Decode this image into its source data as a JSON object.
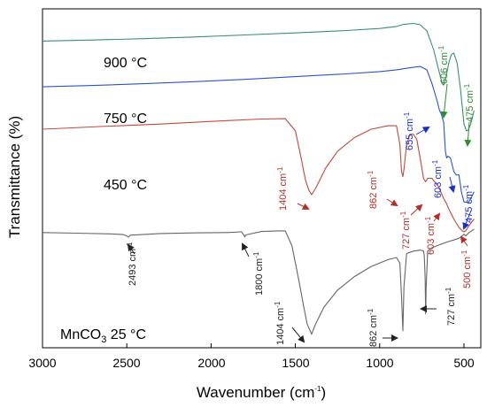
{
  "chart_data": {
    "type": "line",
    "xlabel": "Wavenumber (cm",
    "xlabel_sup": "-1",
    "xlabel_end": ")",
    "ylabel": "Transmittance (%)",
    "xlim": [
      3000,
      400
    ],
    "x_reversed": true,
    "x_ticks": [
      "3000",
      "2500",
      "2000",
      "1500",
      "1000",
      "500"
    ],
    "y_ticks_labeled": false,
    "grid": false,
    "series": [
      {
        "name": "900 °C",
        "color": "#3a8f6e",
        "label_text": "900 °C",
        "points": [
          [
            3000,
            0.905
          ],
          [
            2700,
            0.908
          ],
          [
            2400,
            0.912
          ],
          [
            2100,
            0.917
          ],
          [
            1800,
            0.923
          ],
          [
            1500,
            0.929
          ],
          [
            1200,
            0.936
          ],
          [
            1000,
            0.942
          ],
          [
            900,
            0.948
          ],
          [
            860,
            0.954
          ],
          [
            800,
            0.957
          ],
          [
            760,
            0.953
          ],
          [
            720,
            0.935
          ],
          [
            680,
            0.88
          ],
          [
            650,
            0.82
          ],
          [
            630,
            0.78
          ],
          [
            620,
            0.775
          ],
          [
            606,
            0.8
          ],
          [
            590,
            0.84
          ],
          [
            575,
            0.865
          ],
          [
            560,
            0.87
          ],
          [
            540,
            0.84
          ],
          [
            520,
            0.76
          ],
          [
            500,
            0.66
          ],
          [
            485,
            0.64
          ],
          [
            475,
            0.642
          ],
          [
            460,
            0.66
          ],
          [
            440,
            0.7
          ]
        ]
      },
      {
        "name": "750 °C",
        "color": "#2a55c0",
        "label_text": "750 °C",
        "points": [
          [
            3000,
            0.77
          ],
          [
            2700,
            0.774
          ],
          [
            2400,
            0.779
          ],
          [
            2100,
            0.785
          ],
          [
            1800,
            0.792
          ],
          [
            1500,
            0.8
          ],
          [
            1200,
            0.808
          ],
          [
            1000,
            0.815
          ],
          [
            900,
            0.82
          ],
          [
            820,
            0.826
          ],
          [
            760,
            0.83
          ],
          [
            720,
            0.82
          ],
          [
            690,
            0.78
          ],
          [
            660,
            0.73
          ],
          [
            645,
            0.7
          ],
          [
            635,
            0.69
          ],
          [
            620,
            0.665
          ],
          [
            610,
            0.58
          ],
          [
            603,
            0.56
          ],
          [
            595,
            0.565
          ],
          [
            580,
            0.56
          ],
          [
            560,
            0.52
          ],
          [
            545,
            0.51
          ],
          [
            530,
            0.51
          ],
          [
            515,
            0.46
          ],
          [
            500,
            0.43
          ],
          [
            490,
            0.43
          ],
          [
            475,
            0.428
          ],
          [
            460,
            0.44
          ],
          [
            440,
            0.46
          ]
        ]
      },
      {
        "name": "450 °C",
        "color": "#c04a3c",
        "label_text": "450 °C",
        "points": [
          [
            3000,
            0.645
          ],
          [
            2600,
            0.654
          ],
          [
            2300,
            0.66
          ],
          [
            2000,
            0.668
          ],
          [
            1700,
            0.675
          ],
          [
            1560,
            0.676
          ],
          [
            1500,
            0.64
          ],
          [
            1470,
            0.57
          ],
          [
            1440,
            0.495
          ],
          [
            1420,
            0.465
          ],
          [
            1404,
            0.452
          ],
          [
            1380,
            0.47
          ],
          [
            1320,
            0.53
          ],
          [
            1250,
            0.58
          ],
          [
            1150,
            0.62
          ],
          [
            1050,
            0.645
          ],
          [
            950,
            0.655
          ],
          [
            900,
            0.655
          ],
          [
            880,
            0.6
          ],
          [
            870,
            0.52
          ],
          [
            862,
            0.505
          ],
          [
            855,
            0.53
          ],
          [
            840,
            0.6
          ],
          [
            820,
            0.63
          ],
          [
            800,
            0.63
          ],
          [
            780,
            0.615
          ],
          [
            760,
            0.56
          ],
          [
            740,
            0.5
          ],
          [
            727,
            0.49
          ],
          [
            715,
            0.5
          ],
          [
            690,
            0.5
          ],
          [
            650,
            0.475
          ],
          [
            620,
            0.44
          ],
          [
            603,
            0.425
          ],
          [
            590,
            0.41
          ],
          [
            560,
            0.38
          ],
          [
            530,
            0.355
          ],
          [
            510,
            0.345
          ],
          [
            500,
            0.342
          ],
          [
            490,
            0.345
          ],
          [
            470,
            0.36
          ],
          [
            440,
            0.38
          ]
        ]
      },
      {
        "name": "MnCO3 25 °C",
        "color": "#666666",
        "label_text": "MnCO",
        "label_sub": "3",
        "label_suffix": "  25 °C",
        "points": [
          [
            3000,
            0.34
          ],
          [
            2800,
            0.338
          ],
          [
            2600,
            0.336
          ],
          [
            2520,
            0.334
          ],
          [
            2500,
            0.33
          ],
          [
            2490,
            0.326
          ],
          [
            2480,
            0.332
          ],
          [
            2300,
            0.337
          ],
          [
            2100,
            0.339
          ],
          [
            1900,
            0.34
          ],
          [
            1820,
            0.342
          ],
          [
            1805,
            0.332
          ],
          [
            1800,
            0.327
          ],
          [
            1795,
            0.333
          ],
          [
            1700,
            0.343
          ],
          [
            1600,
            0.345
          ],
          [
            1560,
            0.345
          ],
          [
            1520,
            0.3
          ],
          [
            1480,
            0.2
          ],
          [
            1450,
            0.12
          ],
          [
            1430,
            0.07
          ],
          [
            1404,
            0.04
          ],
          [
            1380,
            0.07
          ],
          [
            1330,
            0.12
          ],
          [
            1250,
            0.17
          ],
          [
            1150,
            0.21
          ],
          [
            1050,
            0.24
          ],
          [
            950,
            0.26
          ],
          [
            900,
            0.266
          ],
          [
            880,
            0.25
          ],
          [
            870,
            0.15
          ],
          [
            862,
            0.05
          ],
          [
            856,
            0.18
          ],
          [
            840,
            0.278
          ],
          [
            800,
            0.285
          ],
          [
            760,
            0.288
          ],
          [
            740,
            0.286
          ],
          [
            735,
            0.27
          ],
          [
            730,
            0.2
          ],
          [
            727,
            0.1
          ],
          [
            724,
            0.18
          ],
          [
            715,
            0.285
          ],
          [
            690,
            0.295
          ],
          [
            640,
            0.305
          ],
          [
            600,
            0.312
          ],
          [
            560,
            0.318
          ],
          [
            530,
            0.323
          ],
          [
            510,
            0.33
          ],
          [
            500,
            0.335
          ],
          [
            490,
            0.33
          ],
          [
            470,
            0.34
          ],
          [
            440,
            0.35
          ]
        ]
      }
    ],
    "annotations": [
      {
        "text": "606 cm",
        "sup": "-1",
        "color": "#2e8b2e"
      },
      {
        "text": "475 cm",
        "sup": "-1",
        "color": "#2e8b2e"
      },
      {
        "text": "655 cm",
        "sup": "-1",
        "color": "#1a2ed0"
      },
      {
        "text": "603 cm",
        "sup": "-1",
        "color": "#1a2ed0"
      },
      {
        "text": "475 cm",
        "sup": "-1",
        "color": "#1a2ed0"
      },
      {
        "text": "1404 cm",
        "sup": "-1",
        "color": "#b0302a"
      },
      {
        "text": "862 cm",
        "sup": "-1",
        "color": "#b0302a"
      },
      {
        "text": "727 cm",
        "sup": "-1",
        "color": "#b0302a"
      },
      {
        "text": "603 cm",
        "sup": "-1",
        "color": "#b0302a"
      },
      {
        "text": "500 cm",
        "sup": "-1",
        "color": "#b0302a"
      },
      {
        "text": "2493 cm",
        "sup": "-1",
        "color": "#222222"
      },
      {
        "text": "1800 cm",
        "sup": "-1",
        "color": "#222222"
      },
      {
        "text": "1404 cm",
        "sup": "-1",
        "color": "#222222"
      },
      {
        "text": "862 cm",
        "sup": "-1",
        "color": "#222222"
      },
      {
        "text": "727 cm",
        "sup": "-1",
        "color": "#222222"
      }
    ]
  }
}
